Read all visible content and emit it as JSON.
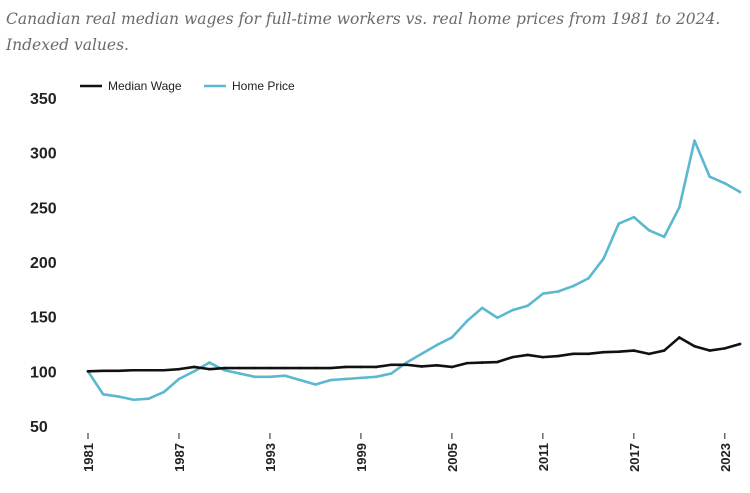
{
  "title": "Canadian real median wages for full-time workers vs. real home prices from 1981 to 2024. Indexed values.",
  "colors": {
    "wage": "#111111",
    "home": "#5bb8cf"
  },
  "chart_data": {
    "type": "line",
    "title": "Canadian real median wages for full-time workers vs. real home prices from 1981 to 2024. Indexed values.",
    "xlabel": "",
    "ylabel": "",
    "ylim": [
      50,
      350
    ],
    "yticks": [
      50,
      100,
      150,
      200,
      250,
      300,
      350
    ],
    "xlim": [
      1981,
      2024
    ],
    "xticks": [
      1981,
      1987,
      1993,
      1999,
      2005,
      2011,
      2017,
      2023
    ],
    "grid": false,
    "legend": "top-left",
    "x": [
      1981,
      1982,
      1983,
      1984,
      1985,
      1986,
      1987,
      1988,
      1989,
      1990,
      1991,
      1992,
      1993,
      1994,
      1995,
      1996,
      1997,
      1998,
      1999,
      2000,
      2001,
      2002,
      2003,
      2004,
      2005,
      2006,
      2007,
      2008,
      2009,
      2010,
      2011,
      2012,
      2013,
      2014,
      2015,
      2016,
      2017,
      2018,
      2019,
      2020,
      2021,
      2022,
      2023,
      2024
    ],
    "series": [
      {
        "name": "Median Wage",
        "values": [
          100,
          100.5,
          100.5,
          101,
          101,
          101,
          102,
          104,
          102,
          103,
          103,
          103,
          103,
          103,
          103,
          103,
          103,
          104,
          104,
          104,
          106,
          106,
          104.5,
          105.5,
          104,
          107.5,
          108,
          108.5,
          113,
          115,
          113,
          114,
          116,
          116,
          117.5,
          118,
          119,
          116,
          119,
          131,
          123,
          119,
          121,
          125
        ]
      },
      {
        "name": "Home Price",
        "values": [
          100,
          79,
          77,
          74,
          75,
          81,
          93,
          100,
          108,
          101,
          98,
          95,
          95,
          96,
          92,
          88,
          92,
          93,
          94,
          95,
          98,
          108,
          116,
          124,
          131,
          146,
          158,
          149,
          156,
          160,
          171,
          173,
          178,
          185,
          203,
          235,
          241,
          229,
          223,
          250,
          311,
          278,
          272,
          264
        ]
      }
    ]
  }
}
